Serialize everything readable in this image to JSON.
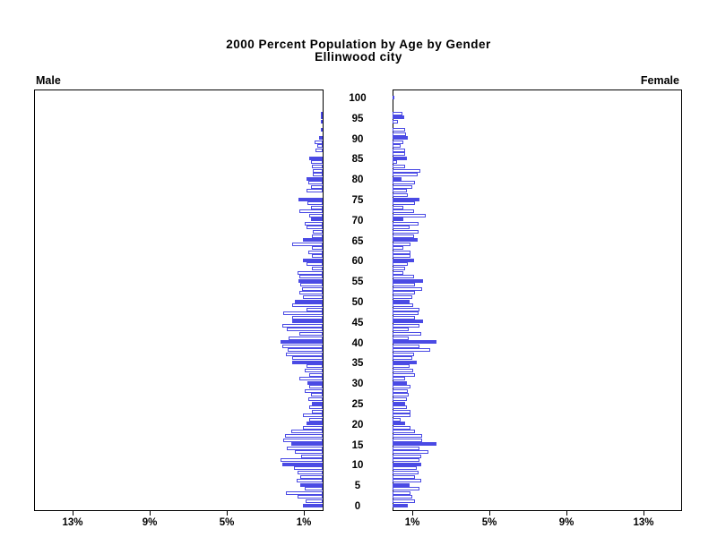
{
  "title": {
    "line1": "2000 Percent Population by Age by Gender",
    "line2": "Ellinwood city"
  },
  "panel_labels": {
    "left": "Male",
    "right": "Female"
  },
  "axis": {
    "age_tick_labels": [
      "0",
      "5",
      "10",
      "15",
      "20",
      "25",
      "30",
      "35",
      "40",
      "45",
      "50",
      "55",
      "60",
      "65",
      "70",
      "75",
      "80",
      "85",
      "90",
      "95",
      "100"
    ],
    "pct_tick_labels_left": [
      "13%",
      "9%",
      "5%",
      "1%"
    ],
    "pct_tick_labels_right": [
      "1%",
      "5%",
      "9%",
      "13%"
    ]
  },
  "colors": {
    "bar_outline": "#4a4ae4",
    "bar_solid_fill": "#4a4ae4",
    "bar_empty_fill": "#ffffff",
    "axis": "#000000",
    "text": "#000000",
    "background": "#ffffff"
  },
  "chart_data": {
    "type": "bar",
    "subtype": "population-pyramid",
    "title": "2000 Percent Population by Age by Gender",
    "subtitle": "Ellinwood city",
    "x_unit": "percent of population",
    "x_ticks_percent": [
      1,
      5,
      9,
      13
    ],
    "x_max_percent": 15,
    "age_min": 0,
    "age_max": 100,
    "age_label_step": 5,
    "solid_bar_every": 5,
    "legend_position": "none",
    "grid": false,
    "series": [
      {
        "name": "Male",
        "side": "left",
        "values_by_age": [
          1.0,
          0.9,
          1.3,
          1.9,
          0.95,
          1.15,
          1.35,
          1.15,
          1.3,
          1.5,
          2.1,
          2.2,
          1.1,
          1.45,
          1.85,
          1.65,
          2.05,
          1.95,
          1.65,
          1.0,
          0.85,
          0.7,
          1.0,
          0.55,
          0.7,
          0.55,
          0.75,
          0.6,
          0.95,
          0.7,
          0.8,
          1.2,
          0.7,
          0.95,
          0.85,
          1.6,
          1.6,
          1.9,
          1.8,
          2.1,
          2.2,
          1.75,
          1.2,
          1.85,
          2.1,
          1.6,
          1.6,
          2.05,
          0.85,
          1.6,
          1.45,
          1.0,
          1.2,
          1.05,
          1.15,
          1.25,
          1.2,
          1.3,
          0.55,
          0.85,
          1.0,
          0.55,
          0.75,
          0.55,
          1.6,
          1.0,
          0.55,
          0.5,
          0.85,
          0.95,
          0.6,
          0.7,
          1.2,
          0.6,
          0.8,
          1.25,
          0,
          0.85,
          0.6,
          0.75,
          0.85,
          0.5,
          0.5,
          0.55,
          0.6,
          0.7,
          0,
          0.35,
          0.3,
          0.4,
          0.2,
          0,
          0.1,
          0,
          0.1,
          0.05,
          0.05,
          0,
          0,
          0,
          0
        ]
      },
      {
        "name": "Female",
        "side": "right",
        "values_by_age": [
          0.8,
          1.15,
          1.0,
          0.95,
          1.4,
          0.9,
          1.5,
          1.15,
          1.35,
          1.25,
          1.5,
          1.4,
          1.5,
          1.85,
          1.4,
          2.3,
          1.55,
          1.55,
          1.15,
          0.95,
          0.65,
          0.4,
          0.95,
          0.95,
          0.75,
          0.65,
          0.75,
          0.85,
          0.8,
          0.95,
          0.75,
          0.65,
          1.15,
          1.05,
          0.9,
          1.25,
          1.0,
          1.1,
          1.95,
          1.4,
          2.3,
          0.85,
          1.5,
          0.85,
          1.4,
          1.6,
          1.15,
          1.35,
          1.4,
          1.05,
          0.9,
          1.0,
          1.15,
          1.55,
          1.15,
          1.6,
          1.1,
          0.55,
          0.65,
          0.8,
          1.1,
          0.95,
          0.95,
          0.55,
          0.95,
          1.3,
          1.1,
          1.35,
          0.9,
          1.35,
          0.55,
          1.7,
          1.1,
          0.55,
          1.15,
          1.4,
          0.8,
          0.75,
          1.0,
          1.15,
          0.45,
          1.3,
          1.45,
          0.65,
          0.25,
          0.75,
          0.65,
          0.65,
          0.4,
          0.55,
          0.8,
          0.7,
          0.65,
          0,
          0.3,
          0.6,
          0.5,
          0,
          0,
          0,
          0.1
        ]
      }
    ]
  }
}
